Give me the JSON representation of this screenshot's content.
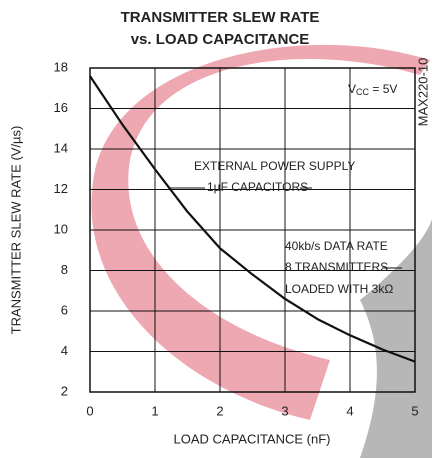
{
  "chart_data": {
    "type": "line",
    "title": "TRANSMITTER SLEW RATE",
    "subtitle": "vs. LOAD CAPACITANCE",
    "x_label": "LOAD CAPACITANCE (nF)",
    "y_label": "TRANSMITTER SLEW RATE (V/µs)",
    "x": [
      0,
      0.5,
      1,
      1.5,
      2,
      2.5,
      3,
      3.5,
      4,
      4.5,
      5
    ],
    "series": [
      {
        "color": "#111111",
        "values": [
          17.6,
          15.2,
          13.0,
          10.9,
          9.1,
          7.8,
          6.6,
          5.6,
          4.8,
          4.1,
          3.5
        ]
      }
    ],
    "xlim": [
      0,
      5
    ],
    "ylim": [
      2,
      18
    ],
    "xticks": [
      0,
      1,
      2,
      3,
      4,
      5
    ],
    "yticks": [
      2,
      4,
      6,
      8,
      10,
      12,
      14,
      16,
      18
    ],
    "grid": true,
    "vcc": {
      "v": "V",
      "sub": "CC",
      "rest": " = 5V"
    },
    "annotations": [
      "EXTERNAL POWER SUPPLY",
      "1µF CAPACITORS",
      "40kb/s DATA RATE",
      "8 TRANSMITTERS",
      "LOADED WITH 3kΩ"
    ],
    "figure_id": "MAX220-10"
  }
}
